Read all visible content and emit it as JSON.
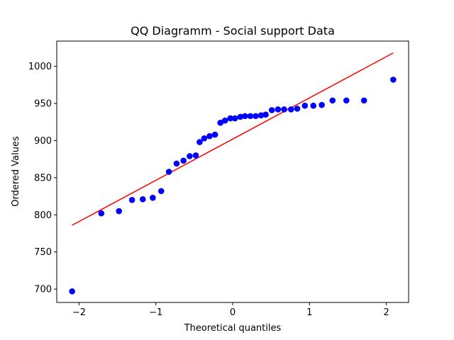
{
  "chart_data": {
    "type": "scatter",
    "title": "QQ Diagramm - Social support Data",
    "xlabel": "Theoretical quantiles",
    "ylabel": "Ordered Values",
    "xlim": [
      -2.29,
      2.29
    ],
    "ylim": [
      682,
      1034
    ],
    "x_ticks": [
      -2,
      -1,
      0,
      1,
      2
    ],
    "x_tick_labels": [
      "−2",
      "−1",
      "0",
      "1",
      "2"
    ],
    "y_ticks": [
      700,
      750,
      800,
      850,
      900,
      950,
      1000
    ],
    "y_tick_labels": [
      "700",
      "750",
      "800",
      "850",
      "900",
      "950",
      "1000"
    ],
    "grid": false,
    "series": [
      {
        "kind": "points",
        "color": "#0000ff",
        "points": [
          [
            -2.09,
            697
          ],
          [
            -1.71,
            802
          ],
          [
            -1.48,
            805
          ],
          [
            -1.31,
            820
          ],
          [
            -1.17,
            821
          ],
          [
            -1.04,
            823
          ],
          [
            -0.93,
            832
          ],
          [
            -0.83,
            858
          ],
          [
            -0.73,
            869
          ],
          [
            -0.64,
            873
          ],
          [
            -0.56,
            879
          ],
          [
            -0.48,
            880
          ],
          [
            -0.43,
            898
          ],
          [
            -0.37,
            903
          ],
          [
            -0.3,
            906
          ],
          [
            -0.23,
            908
          ],
          [
            -0.16,
            924
          ],
          [
            -0.1,
            927
          ],
          [
            -0.03,
            930
          ],
          [
            0.03,
            930
          ],
          [
            0.1,
            932
          ],
          [
            0.16,
            933
          ],
          [
            0.23,
            933
          ],
          [
            0.3,
            933
          ],
          [
            0.37,
            934
          ],
          [
            0.43,
            935
          ],
          [
            0.51,
            941
          ],
          [
            0.59,
            942
          ],
          [
            0.67,
            942
          ],
          [
            0.76,
            942
          ],
          [
            0.84,
            943
          ],
          [
            0.94,
            947
          ],
          [
            1.05,
            947
          ],
          [
            1.16,
            948
          ],
          [
            1.3,
            954
          ],
          [
            1.48,
            954
          ],
          [
            1.71,
            954
          ],
          [
            2.09,
            982
          ]
        ]
      },
      {
        "kind": "line",
        "color": "#ff0000",
        "points": [
          [
            -2.09,
            786
          ],
          [
            2.09,
            1018
          ]
        ]
      }
    ]
  }
}
